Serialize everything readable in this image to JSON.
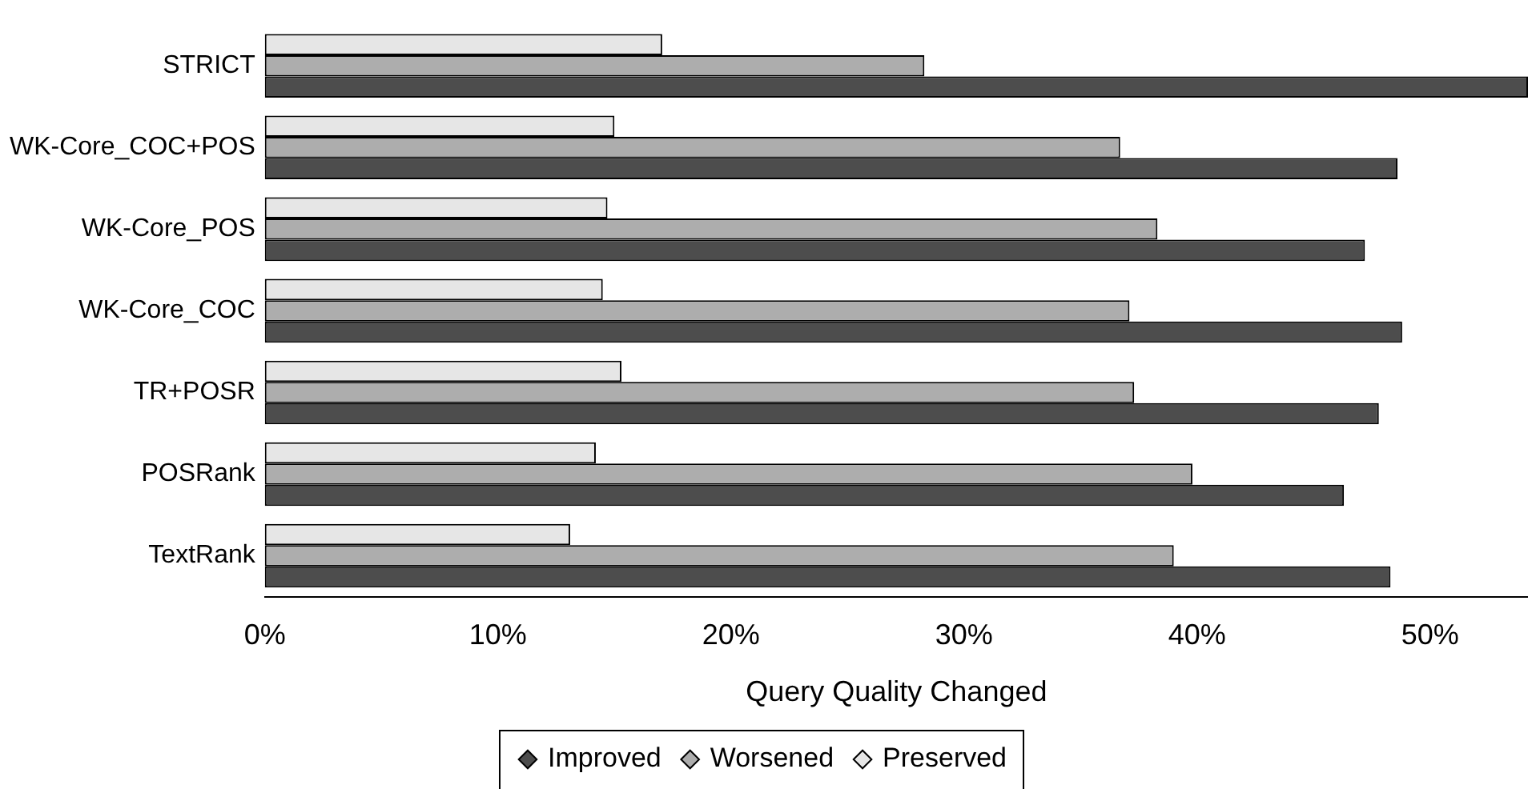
{
  "chart_data": {
    "type": "bar",
    "orientation": "horizontal",
    "xlabel": "Query Quality Changed",
    "categories": [
      "STRICT",
      "WK-Core_COC+POS",
      "WK-Core_POS",
      "WK-Core_COC",
      "TR+POSR",
      "POSRank",
      "TextRank"
    ],
    "series": [
      {
        "name": "Preserved",
        "color": "#e6e6e6",
        "values": [
          17.05,
          15.0,
          14.7,
          14.5,
          15.3,
          14.2,
          13.1
        ]
      },
      {
        "name": "Worsened",
        "color": "#adadad",
        "values": [
          28.3,
          36.7,
          38.3,
          37.1,
          37.3,
          39.8,
          39.0
        ]
      },
      {
        "name": "Improved",
        "color": "#4d4d4d",
        "values": [
          54.2,
          48.6,
          47.2,
          48.8,
          47.8,
          46.3,
          48.3
        ]
      }
    ],
    "xlim": [
      0,
      54.2
    ],
    "xticks": [
      {
        "value": 0,
        "label": "0%"
      },
      {
        "value": 10,
        "label": "10%"
      },
      {
        "value": 20,
        "label": "20%"
      },
      {
        "value": 30,
        "label": "30%"
      },
      {
        "value": 40,
        "label": "40%"
      },
      {
        "value": 50,
        "label": "50%"
      }
    ],
    "legend": "bottom"
  }
}
